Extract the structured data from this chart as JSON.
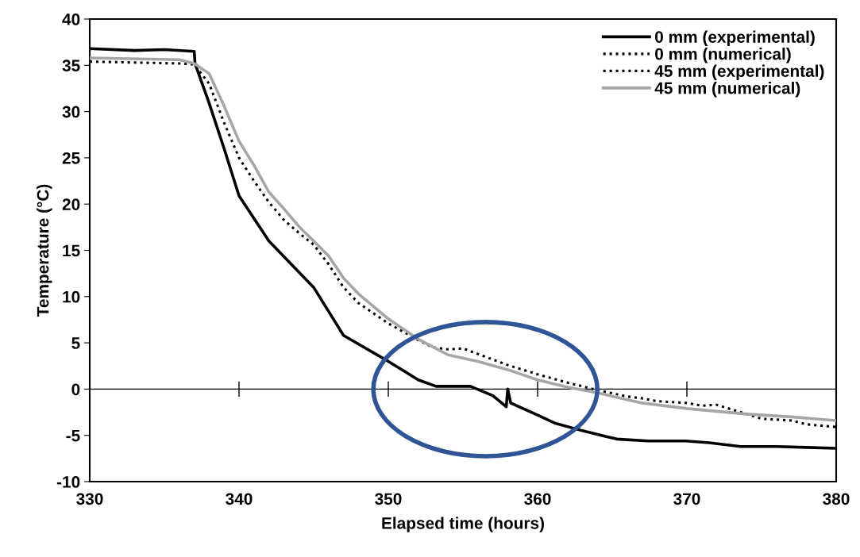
{
  "chart_data": {
    "type": "line",
    "xlabel": "Elapsed time (hours)",
    "ylabel": "Temperature (°C)",
    "xlim": [
      330,
      380
    ],
    "xticks": [
      330,
      340,
      350,
      360,
      370,
      380
    ],
    "ylim": [
      -10,
      40
    ],
    "yticks": [
      -10,
      -5,
      0,
      5,
      10,
      15,
      20,
      25,
      30,
      35,
      40
    ],
    "grid": false,
    "legend": "top right",
    "marker": "none",
    "ref_lines": [
      {
        "axis": "y",
        "value": 0,
        "color": "#000000",
        "line_style": "solid"
      }
    ],
    "series": [
      {
        "name": "0 mm (experimental)",
        "color": "#000000",
        "line_style": "solid",
        "x": [
          330,
          333,
          335,
          337,
          337.05,
          338,
          339,
          340,
          342,
          345,
          347,
          350,
          352,
          353.2,
          355.5,
          357,
          357.9,
          358,
          358.2,
          360,
          361.2,
          363,
          365.3,
          367.4,
          369.9,
          371.5,
          373.6,
          376,
          378,
          380
        ],
        "values": [
          36.8,
          36.6,
          36.7,
          36.5,
          35.2,
          30.9,
          26.0,
          20.9,
          16.0,
          11.0,
          5.8,
          3.0,
          1.0,
          0.3,
          0.3,
          -0.7,
          -1.9,
          0.0,
          -1.5,
          -2.8,
          -3.7,
          -4.5,
          -5.4,
          -5.6,
          -5.6,
          -5.8,
          -6.2,
          -6.2,
          -6.3,
          -6.4
        ]
      },
      {
        "name": "0 mm (numerical)",
        "color": "#000000",
        "line_style": "dotted",
        "values": [
          null
        ]
      },
      {
        "name": "45 mm (experimental)",
        "color": "#000000",
        "line_style": "dotted",
        "x": [
          330,
          336,
          337,
          338,
          339,
          340,
          341,
          342,
          343,
          344,
          345,
          346,
          347,
          348,
          350,
          352,
          353,
          354,
          355,
          356,
          358,
          360,
          362,
          364,
          366,
          367,
          368,
          370,
          371,
          372,
          373,
          375,
          377,
          378,
          380
        ],
        "values": [
          35.4,
          35.2,
          35.1,
          33.0,
          28.8,
          25.0,
          22.5,
          20.2,
          18.3,
          16.9,
          15.6,
          13.5,
          11.0,
          9.3,
          7.1,
          5.3,
          4.5,
          4.3,
          4.4,
          3.8,
          2.6,
          1.6,
          0.7,
          -0.1,
          -0.8,
          -1.0,
          -1.3,
          -1.5,
          -1.8,
          -1.7,
          -2.2,
          -3.2,
          -3.4,
          -3.8,
          -4.1
        ]
      },
      {
        "name": "45 mm (numerical)",
        "color": "#a6a6a6",
        "line_style": "solid",
        "x": [
          330,
          336,
          337,
          338,
          339,
          340,
          341,
          342,
          343,
          344,
          345,
          346,
          347,
          348,
          350,
          352,
          354,
          356,
          358,
          360,
          362,
          364,
          367,
          370,
          374,
          377,
          380
        ],
        "values": [
          35.8,
          35.6,
          35.2,
          34.1,
          30.6,
          26.8,
          24.2,
          21.3,
          19.5,
          17.6,
          16.0,
          14.4,
          12.0,
          10.3,
          7.6,
          5.4,
          3.7,
          3.0,
          2.1,
          1.0,
          0.2,
          -0.4,
          -1.5,
          -2.1,
          -2.7,
          -3.0,
          -3.4
        ]
      }
    ]
  }
}
